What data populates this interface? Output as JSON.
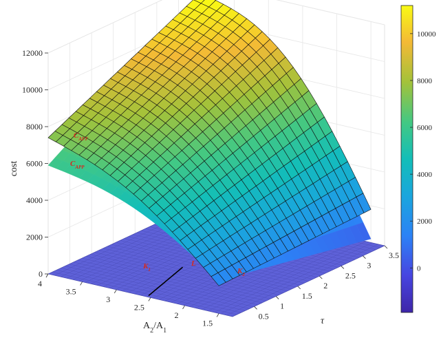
{
  "chart_data": {
    "type": "surface3d",
    "title": "",
    "zlabel": "cost",
    "xlabel": "A",
    "xlabel_sub1": "2",
    "xlabel_mid": "/A",
    "xlabel_sub2": "1",
    "ylabel": "τ",
    "x_ticks": [
      "4",
      "3.5",
      "3",
      "2.5",
      "2",
      "1.5"
    ],
    "x_tick_values": [
      4,
      3.5,
      3,
      2.5,
      2,
      1.5
    ],
    "y_ticks": [
      "0.5",
      "1",
      "1.5",
      "2",
      "2.5",
      "3",
      "3.5"
    ],
    "y_tick_values": [
      0.5,
      1,
      1.5,
      2,
      2.5,
      3,
      3.5
    ],
    "z_ticks": [
      "0",
      "2000",
      "4000",
      "6000",
      "8000",
      "10000",
      "12000"
    ],
    "z_tick_values": [
      0,
      2000,
      4000,
      6000,
      8000,
      10000,
      12000
    ],
    "xlim": [
      1.3,
      4
    ],
    "ylim": [
      0,
      3.5
    ],
    "zlim": [
      0,
      12000
    ],
    "grid": true,
    "colormap": "parula",
    "colorbar": {
      "placement": "right",
      "ticks": [
        "0",
        "2000",
        "4000",
        "6000",
        "8000",
        "10000"
      ],
      "tick_values": [
        0,
        2000,
        4000,
        6000,
        8000,
        10000
      ],
      "range": [
        -1900,
        11200
      ]
    },
    "surfaces": [
      {
        "label": "C",
        "label_sub": "AFF",
        "kind": "upper-meshed",
        "corner_values": {
          "x4_y0": 7400,
          "x4_y3.5": 11400,
          "x1.5_y0": 1500,
          "x1.5_y3.5": 1800
        }
      },
      {
        "label": "C",
        "label_sub": "APP",
        "kind": "lower-smooth",
        "corner_values": {
          "x4_y0": 5900,
          "x4_y3.5": 11200,
          "x1.5_y0": 1800,
          "x1.5_y3.5": 200
        }
      }
    ],
    "floor_plane": {
      "z": 0,
      "regions": [
        {
          "label": "K",
          "label_sub": "1"
        },
        {
          "label": "L",
          "label_sub": ""
        },
        {
          "label": "K",
          "label_sub": "2"
        }
      ]
    }
  }
}
